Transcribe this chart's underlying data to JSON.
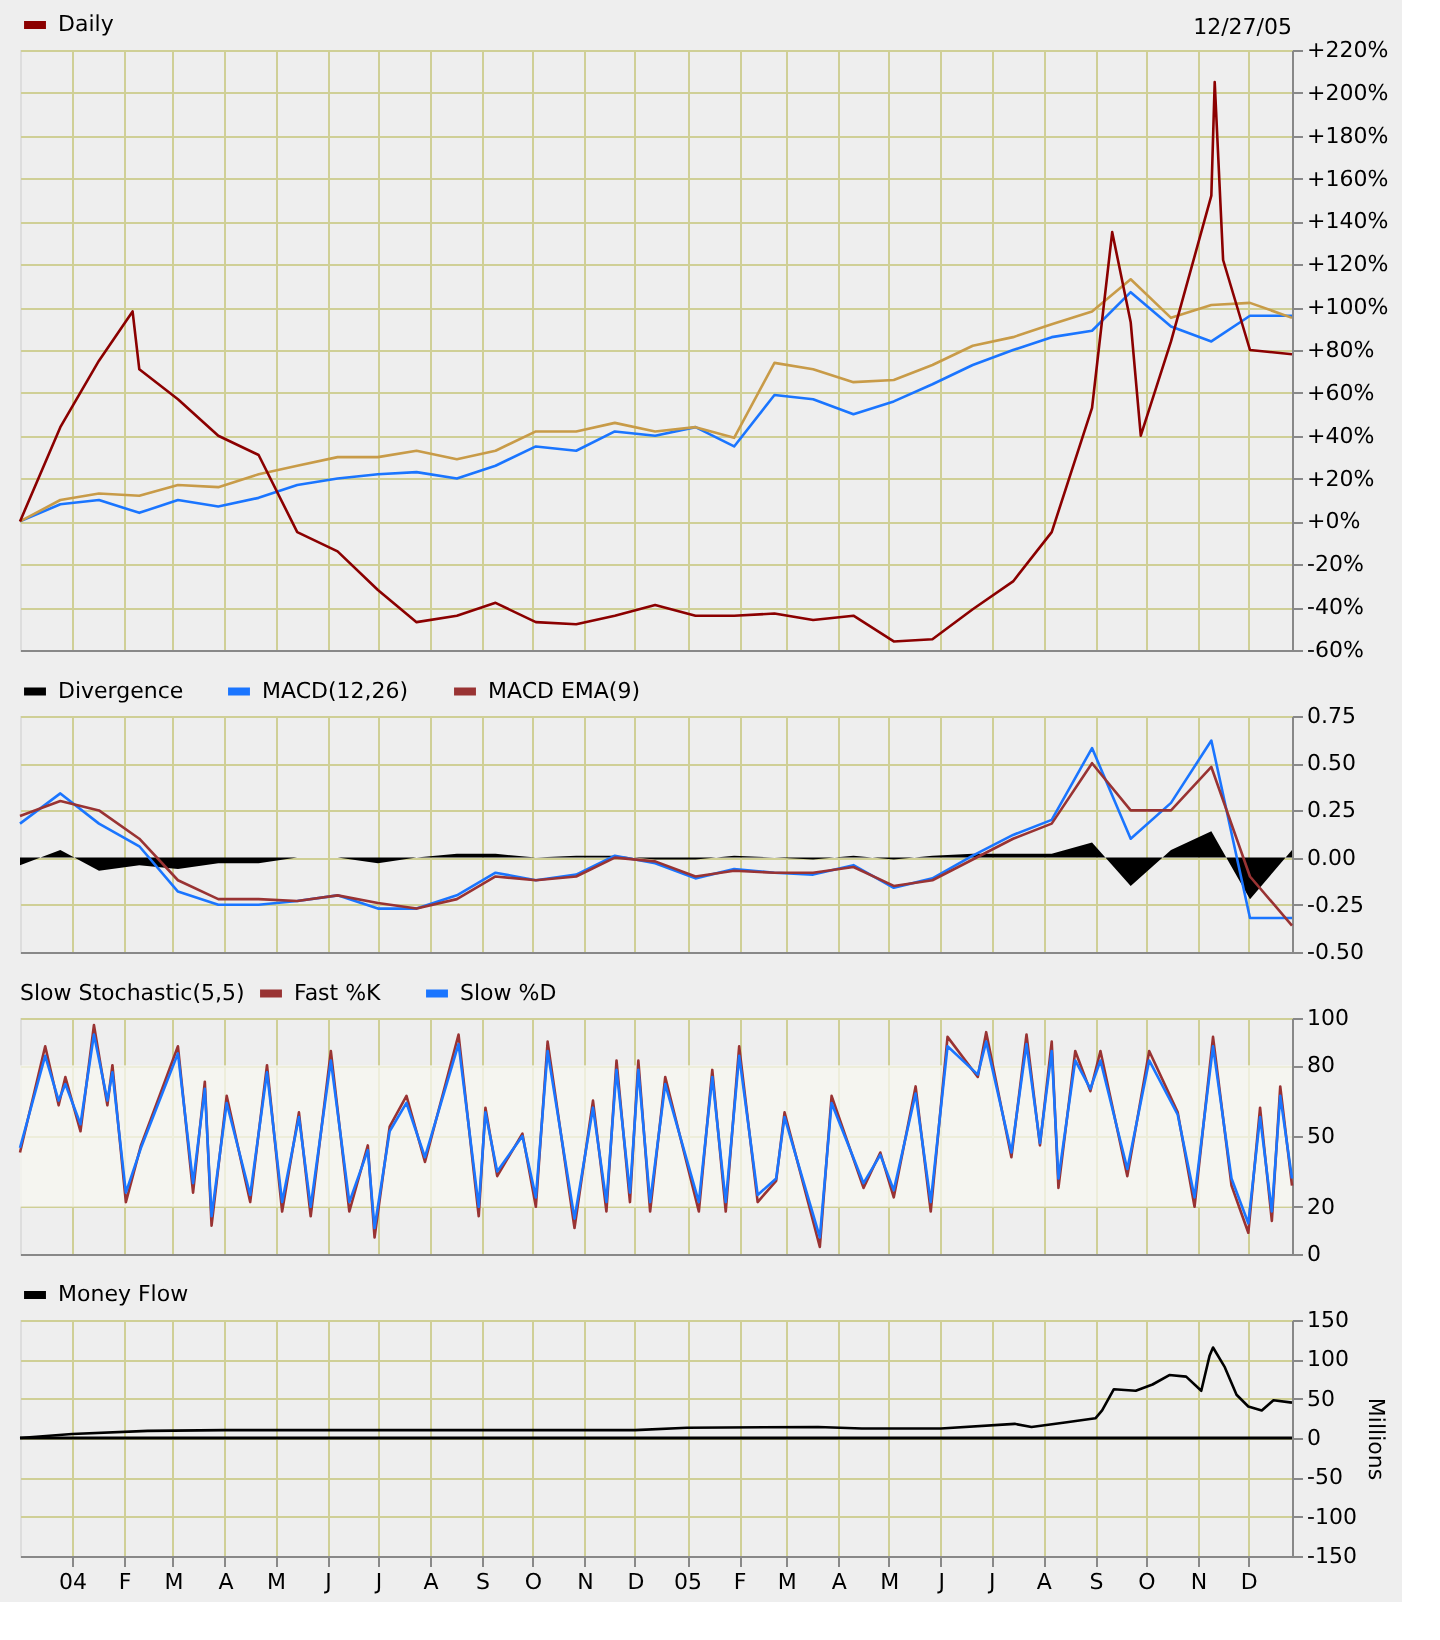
{
  "chart_data": [
    {
      "type": "line",
      "legend": "top left",
      "tick_labels": "y",
      "grid": true,
      "annotations": [
        "12/27/05"
      ],
      "x": [
        "2003-12-01",
        "2003-12-25",
        "2004-01-17",
        "2004-02-10",
        "2004-03-04",
        "2004-03-28",
        "2004-04-21",
        "2004-05-14",
        "2004-06-07",
        "2004-07-01",
        "2004-07-24",
        "2004-08-17",
        "2004-09-09",
        "2004-10-03",
        "2004-10-27",
        "2004-11-19",
        "2004-12-13",
        "2005-01-06",
        "2005-01-29",
        "2005-02-22",
        "2005-03-17",
        "2005-04-10",
        "2005-05-04",
        "2005-05-27",
        "2005-06-20",
        "2005-07-14",
        "2005-08-06",
        "2005-08-30",
        "2005-09-22",
        "2005-10-16",
        "2005-11-09",
        "2005-12-02",
        "2005-12-27"
      ],
      "xlim": [
        "2003-12-01",
        "2005-12-27"
      ],
      "xticks": [
        {
          "value": "2004-01-01",
          "label": null
        },
        {
          "value": "2004-02-01",
          "label": null
        },
        {
          "value": "2004-03-01",
          "label": null
        },
        {
          "value": "2004-04-01",
          "label": null
        },
        {
          "value": "2004-05-01",
          "label": null
        },
        {
          "value": "2004-06-01",
          "label": null
        },
        {
          "value": "2004-07-01",
          "label": null
        },
        {
          "value": "2004-08-01",
          "label": null
        },
        {
          "value": "2004-09-01",
          "label": null
        },
        {
          "value": "2004-10-01",
          "label": null
        },
        {
          "value": "2004-11-01",
          "label": null
        },
        {
          "value": "2004-12-01",
          "label": null
        },
        {
          "value": "2005-01-01",
          "label": null
        },
        {
          "value": "2005-02-01",
          "label": null
        },
        {
          "value": "2005-03-01",
          "label": null
        },
        {
          "value": "2005-04-01",
          "label": null
        },
        {
          "value": "2005-05-01",
          "label": null
        },
        {
          "value": "2005-06-01",
          "label": null
        },
        {
          "value": "2005-07-01",
          "label": null
        },
        {
          "value": "2005-08-01",
          "label": null
        },
        {
          "value": "2005-09-01",
          "label": null
        },
        {
          "value": "2005-10-01",
          "label": null
        },
        {
          "value": "2005-11-01",
          "label": null
        },
        {
          "value": "2005-12-01",
          "label": null
        }
      ],
      "ylim": [
        -60,
        220
      ],
      "yticks": [
        {
          "value": -60,
          "label": "-60%"
        },
        {
          "value": -40,
          "label": "-40%"
        },
        {
          "value": -20,
          "label": "-20%"
        },
        {
          "value": 0,
          "label": "+0%"
        },
        {
          "value": 20,
          "label": "+20%"
        },
        {
          "value": 40,
          "label": "+40%"
        },
        {
          "value": 60,
          "label": "+60%"
        },
        {
          "value": 80,
          "label": "+80%"
        },
        {
          "value": 100,
          "label": "+100%"
        },
        {
          "value": 120,
          "label": "+120%"
        },
        {
          "value": 140,
          "label": "+140%"
        },
        {
          "value": 160,
          "label": "+160%"
        },
        {
          "value": 180,
          "label": "+180%"
        },
        {
          "value": 200,
          "label": "+200%"
        },
        {
          "value": 220,
          "label": "+220%"
        }
      ],
      "series": [
        {
          "color": "#1a75ff",
          "values": [
            0,
            8,
            10,
            4,
            10,
            7,
            11,
            17,
            20,
            22,
            23,
            20,
            26,
            35,
            33,
            42,
            40,
            44,
            35,
            59,
            57,
            50,
            56,
            64,
            73,
            80,
            86,
            89,
            107,
            91,
            84,
            96,
            96
          ]
        },
        {
          "color": "#c89b48",
          "values": [
            0,
            10,
            13,
            12,
            17,
            16,
            22,
            26,
            30,
            30,
            33,
            29,
            33,
            42,
            42,
            46,
            42,
            44,
            39,
            74,
            71,
            65,
            66,
            73,
            82,
            86,
            92,
            98,
            113,
            95,
            101,
            102,
            95
          ]
        },
        {
          "name": "Daily",
          "color": "#8b0000",
          "x": [
            "2003-12-01",
            "2003-12-25",
            "2004-01-17",
            "2004-02-06",
            "2004-02-10",
            "2004-03-04",
            "2004-03-28",
            "2004-04-21",
            "2004-05-14",
            "2004-06-07",
            "2004-07-01",
            "2004-07-24",
            "2004-08-17",
            "2004-09-09",
            "2004-10-03",
            "2004-10-27",
            "2004-11-19",
            "2004-12-13",
            "2005-01-06",
            "2005-01-29",
            "2005-02-22",
            "2005-03-17",
            "2005-04-10",
            "2005-05-04",
            "2005-05-27",
            "2005-06-20",
            "2005-07-14",
            "2005-08-06",
            "2005-08-30",
            "2005-09-11",
            "2005-09-22",
            "2005-09-28",
            "2005-10-16",
            "2005-11-09",
            "2005-11-11",
            "2005-11-16",
            "2005-12-02",
            "2005-12-27"
          ],
          "values": [
            0,
            44,
            75,
            98,
            71,
            57,
            40,
            31,
            -5,
            -14,
            -32,
            -47,
            -44,
            -38,
            -47,
            -48,
            -44,
            -39,
            -44,
            -44,
            -43,
            -46,
            -44,
            -56,
            -55,
            -41,
            -28,
            -5,
            53,
            135,
            93,
            40,
            84,
            152,
            205,
            122,
            80,
            78
          ]
        }
      ]
    },
    {
      "type": "line",
      "legend": "top left",
      "tick_labels": "y",
      "grid": true,
      "x": [
        "2003-12-01",
        "2003-12-25",
        "2004-01-17",
        "2004-02-10",
        "2004-03-04",
        "2004-03-28",
        "2004-04-21",
        "2004-05-14",
        "2004-06-07",
        "2004-07-01",
        "2004-07-24",
        "2004-08-17",
        "2004-09-09",
        "2004-10-03",
        "2004-10-27",
        "2004-11-19",
        "2004-12-13",
        "2005-01-06",
        "2005-01-29",
        "2005-02-22",
        "2005-03-17",
        "2005-04-10",
        "2005-05-04",
        "2005-05-27",
        "2005-06-20",
        "2005-07-14",
        "2005-08-06",
        "2005-08-30",
        "2005-09-22",
        "2005-10-16",
        "2005-11-09",
        "2005-12-02",
        "2005-12-27"
      ],
      "xlim": [
        "2003-12-01",
        "2005-12-27"
      ],
      "xticks": [
        {
          "value": "2004-01-01",
          "label": null
        },
        {
          "value": "2004-02-01",
          "label": null
        },
        {
          "value": "2004-03-01",
          "label": null
        },
        {
          "value": "2004-04-01",
          "label": null
        },
        {
          "value": "2004-05-01",
          "label": null
        },
        {
          "value": "2004-06-01",
          "label": null
        },
        {
          "value": "2004-07-01",
          "label": null
        },
        {
          "value": "2004-08-01",
          "label": null
        },
        {
          "value": "2004-09-01",
          "label": null
        },
        {
          "value": "2004-10-01",
          "label": null
        },
        {
          "value": "2004-11-01",
          "label": null
        },
        {
          "value": "2004-12-01",
          "label": null
        },
        {
          "value": "2005-01-01",
          "label": null
        },
        {
          "value": "2005-02-01",
          "label": null
        },
        {
          "value": "2005-03-01",
          "label": null
        },
        {
          "value": "2005-04-01",
          "label": null
        },
        {
          "value": "2005-05-01",
          "label": null
        },
        {
          "value": "2005-06-01",
          "label": null
        },
        {
          "value": "2005-07-01",
          "label": null
        },
        {
          "value": "2005-08-01",
          "label": null
        },
        {
          "value": "2005-09-01",
          "label": null
        },
        {
          "value": "2005-10-01",
          "label": null
        },
        {
          "value": "2005-11-01",
          "label": null
        },
        {
          "value": "2005-12-01",
          "label": null
        }
      ],
      "ylim": [
        -0.5,
        0.75
      ],
      "yticks": [
        {
          "value": -0.5,
          "label": "-0.50"
        },
        {
          "value": -0.25,
          "label": "-0.25"
        },
        {
          "value": 0,
          "label": "0.00"
        },
        {
          "value": 0.25,
          "label": "0.25"
        },
        {
          "value": 0.5,
          "label": "0.50"
        },
        {
          "value": 0.75,
          "label": "0.75"
        }
      ],
      "series": [
        {
          "name": "Divergence",
          "type": "area",
          "color": "#000000",
          "values": [
            -0.04,
            0.04,
            -0.07,
            -0.04,
            -0.06,
            -0.03,
            -0.03,
            0.0,
            0.0,
            -0.03,
            0.0,
            0.02,
            0.02,
            0.0,
            0.01,
            0.01,
            -0.01,
            -0.01,
            0.01,
            0.0,
            -0.01,
            0.01,
            -0.01,
            0.01,
            0.02,
            0.02,
            0.02,
            0.08,
            -0.15,
            0.04,
            0.14,
            -0.22,
            0.04
          ]
        },
        {
          "name": "MACD(12,26)",
          "color": "#1a75ff",
          "values": [
            0.18,
            0.34,
            0.18,
            0.06,
            -0.18,
            -0.25,
            -0.25,
            -0.23,
            -0.2,
            -0.27,
            -0.27,
            -0.2,
            -0.08,
            -0.12,
            -0.09,
            0.01,
            -0.03,
            -0.11,
            -0.06,
            -0.08,
            -0.09,
            -0.04,
            -0.16,
            -0.11,
            0.01,
            0.12,
            0.2,
            0.58,
            0.1,
            0.29,
            0.62,
            -0.32,
            -0.32
          ]
        },
        {
          "name": "MACD EMA(9)",
          "color": "#993333",
          "values": [
            0.22,
            0.3,
            0.25,
            0.1,
            -0.12,
            -0.22,
            -0.22,
            -0.23,
            -0.2,
            -0.24,
            -0.27,
            -0.22,
            -0.1,
            -0.12,
            -0.1,
            0.0,
            -0.02,
            -0.1,
            -0.07,
            -0.08,
            -0.08,
            -0.05,
            -0.15,
            -0.12,
            -0.01,
            0.1,
            0.18,
            0.5,
            0.25,
            0.25,
            0.48,
            -0.1,
            -0.36
          ]
        }
      ]
    },
    {
      "type": "line",
      "legend": "top left",
      "legend_title": "Slow Stochastic(5,5)",
      "tick_labels": "y",
      "grid": true,
      "bands": [
        {
          "axis": "y",
          "from": 20,
          "to": 80,
          "color": "#f7f7f0"
        }
      ],
      "x": [
        "2003-12-01",
        "2003-12-16",
        "2003-12-24",
        "2003-12-28",
        "2004-01-06",
        "2004-01-14",
        "2004-01-22",
        "2004-01-25",
        "2004-02-02",
        "2004-02-11",
        "2004-02-22",
        "2004-03-04",
        "2004-03-13",
        "2004-03-20",
        "2004-03-24",
        "2004-04-02",
        "2004-04-16",
        "2004-04-26",
        "2004-05-05",
        "2004-05-15",
        "2004-05-22",
        "2004-06-03",
        "2004-06-14",
        "2004-06-25",
        "2004-06-29",
        "2004-07-08",
        "2004-07-18",
        "2004-07-29",
        "2004-08-18",
        "2004-08-30",
        "2004-09-03",
        "2004-09-10",
        "2004-09-25",
        "2004-10-03",
        "2004-10-10",
        "2004-10-26",
        "2004-11-06",
        "2004-11-14",
        "2004-11-20",
        "2004-11-28",
        "2004-12-03",
        "2004-12-10",
        "2004-12-19",
        "2005-01-08",
        "2005-01-16",
        "2005-01-24",
        "2005-02-01",
        "2005-02-12",
        "2005-02-23",
        "2005-02-28",
        "2005-03-21",
        "2005-03-28",
        "2005-04-16",
        "2005-04-26",
        "2005-05-04",
        "2005-05-17",
        "2005-05-26",
        "2005-06-05",
        "2005-06-23",
        "2005-06-28",
        "2005-07-13",
        "2005-07-22",
        "2005-07-30",
        "2005-08-06",
        "2005-08-10",
        "2005-08-20",
        "2005-08-29",
        "2005-09-04",
        "2005-09-20",
        "2005-10-03",
        "2005-10-20",
        "2005-10-30",
        "2005-11-10",
        "2005-11-21",
        "2005-12-01",
        "2005-12-08",
        "2005-12-15",
        "2005-12-20",
        "2005-12-27"
      ],
      "xlim": [
        "2003-12-01",
        "2005-12-27"
      ],
      "xticks": [
        {
          "value": "2004-01-01",
          "label": null
        },
        {
          "value": "2004-02-01",
          "label": null
        },
        {
          "value": "2004-03-01",
          "label": null
        },
        {
          "value": "2004-04-01",
          "label": null
        },
        {
          "value": "2004-05-01",
          "label": null
        },
        {
          "value": "2004-06-01",
          "label": null
        },
        {
          "value": "2004-07-01",
          "label": null
        },
        {
          "value": "2004-08-01",
          "label": null
        },
        {
          "value": "2004-09-01",
          "label": null
        },
        {
          "value": "2004-10-01",
          "label": null
        },
        {
          "value": "2004-11-01",
          "label": null
        },
        {
          "value": "2004-12-01",
          "label": null
        },
        {
          "value": "2005-01-01",
          "label": null
        },
        {
          "value": "2005-02-01",
          "label": null
        },
        {
          "value": "2005-03-01",
          "label": null
        },
        {
          "value": "2005-04-01",
          "label": null
        },
        {
          "value": "2005-05-01",
          "label": null
        },
        {
          "value": "2005-06-01",
          "label": null
        },
        {
          "value": "2005-07-01",
          "label": null
        },
        {
          "value": "2005-08-01",
          "label": null
        },
        {
          "value": "2005-09-01",
          "label": null
        },
        {
          "value": "2005-10-01",
          "label": null
        },
        {
          "value": "2005-11-01",
          "label": null
        },
        {
          "value": "2005-12-01",
          "label": null
        }
      ],
      "ylim": [
        0,
        100
      ],
      "yticks": [
        0,
        20,
        50,
        80,
        100
      ],
      "series": [
        {
          "name": "Fast %K",
          "color": "#993333",
          "values": [
            43,
            88,
            63,
            75,
            52,
            97,
            63,
            80,
            22,
            46,
            67,
            88,
            26,
            73,
            12,
            67,
            22,
            80,
            18,
            60,
            16,
            86,
            18,
            46,
            7,
            54,
            67,
            39,
            93,
            16,
            62,
            33,
            51,
            20,
            90,
            11,
            65,
            18,
            82,
            22,
            82,
            18,
            75,
            18,
            78,
            18,
            88,
            22,
            31,
            60,
            3,
            67,
            28,
            43,
            24,
            71,
            18,
            92,
            75,
            94,
            41,
            93,
            46,
            90,
            28,
            86,
            69,
            86,
            33,
            86,
            60,
            20,
            92,
            29,
            9,
            62,
            14,
            71,
            29
          ]
        },
        {
          "name": "Slow %D",
          "color": "#1a75ff",
          "values": [
            45,
            84,
            65,
            72,
            55,
            93,
            65,
            77,
            26,
            45,
            65,
            85,
            30,
            70,
            16,
            64,
            25,
            77,
            22,
            58,
            20,
            82,
            22,
            44,
            11,
            52,
            64,
            41,
            89,
            20,
            60,
            35,
            50,
            24,
            86,
            15,
            62,
            22,
            78,
            26,
            78,
            22,
            72,
            22,
            75,
            22,
            84,
            25,
            32,
            58,
            7,
            64,
            30,
            42,
            27,
            68,
            22,
            88,
            76,
            90,
            43,
            89,
            47,
            86,
            32,
            82,
            70,
            82,
            36,
            82,
            59,
            24,
            88,
            32,
            13,
            58,
            18,
            67,
            32
          ]
        }
      ]
    },
    {
      "type": "line",
      "legend": "top left",
      "grid": true,
      "ylabel": "Millions",
      "ref_lines": [
        {
          "axis": "y",
          "value": 0,
          "color": "#000000"
        }
      ],
      "x": [
        "2003-12-01",
        "2004-01-01",
        "2004-02-15",
        "2004-04-01",
        "2004-09-01",
        "2004-12-01",
        "2005-01-01",
        "2005-03-20",
        "2005-04-15",
        "2005-06-01",
        "2005-07-15",
        "2005-07-25",
        "2005-08-15",
        "2005-09-01",
        "2005-09-05",
        "2005-09-12",
        "2005-09-25",
        "2005-10-05",
        "2005-10-15",
        "2005-10-25",
        "2005-11-03",
        "2005-11-08",
        "2005-11-10",
        "2005-11-17",
        "2005-11-24",
        "2005-12-01",
        "2005-12-09",
        "2005-12-16",
        "2005-12-27"
      ],
      "xlim": [
        "2003-12-01",
        "2005-12-27"
      ],
      "xticks": [
        {
          "value": "2004-01-01",
          "label": "04"
        },
        {
          "value": "2004-02-01",
          "label": "F"
        },
        {
          "value": "2004-03-01",
          "label": "M"
        },
        {
          "value": "2004-04-01",
          "label": "A"
        },
        {
          "value": "2004-05-01",
          "label": "M"
        },
        {
          "value": "2004-06-01",
          "label": "J"
        },
        {
          "value": "2004-07-01",
          "label": "J"
        },
        {
          "value": "2004-08-01",
          "label": "A"
        },
        {
          "value": "2004-09-01",
          "label": "S"
        },
        {
          "value": "2004-10-01",
          "label": "O"
        },
        {
          "value": "2004-11-01",
          "label": "N"
        },
        {
          "value": "2004-12-01",
          "label": "D"
        },
        {
          "value": "2005-01-01",
          "label": "05"
        },
        {
          "value": "2005-02-01",
          "label": "F"
        },
        {
          "value": "2005-03-01",
          "label": "M"
        },
        {
          "value": "2005-04-01",
          "label": "A"
        },
        {
          "value": "2005-05-01",
          "label": "M"
        },
        {
          "value": "2005-06-01",
          "label": "J"
        },
        {
          "value": "2005-07-01",
          "label": "J"
        },
        {
          "value": "2005-08-01",
          "label": "A"
        },
        {
          "value": "2005-09-01",
          "label": "S"
        },
        {
          "value": "2005-10-01",
          "label": "O"
        },
        {
          "value": "2005-11-01",
          "label": "N"
        },
        {
          "value": "2005-12-01",
          "label": "D"
        }
      ],
      "ylim": [
        -150,
        150
      ],
      "yticks": [
        -150,
        -100,
        -50,
        0,
        50,
        100,
        150
      ],
      "series": [
        {
          "name": "Money Flow",
          "color": "#000000",
          "values": [
            0,
            5,
            9,
            10,
            10,
            10,
            13,
            14,
            12,
            12,
            18,
            14,
            20,
            25,
            35,
            62,
            60,
            68,
            80,
            78,
            60,
            105,
            115,
            90,
            55,
            40,
            35,
            48,
            45
          ]
        }
      ]
    }
  ]
}
